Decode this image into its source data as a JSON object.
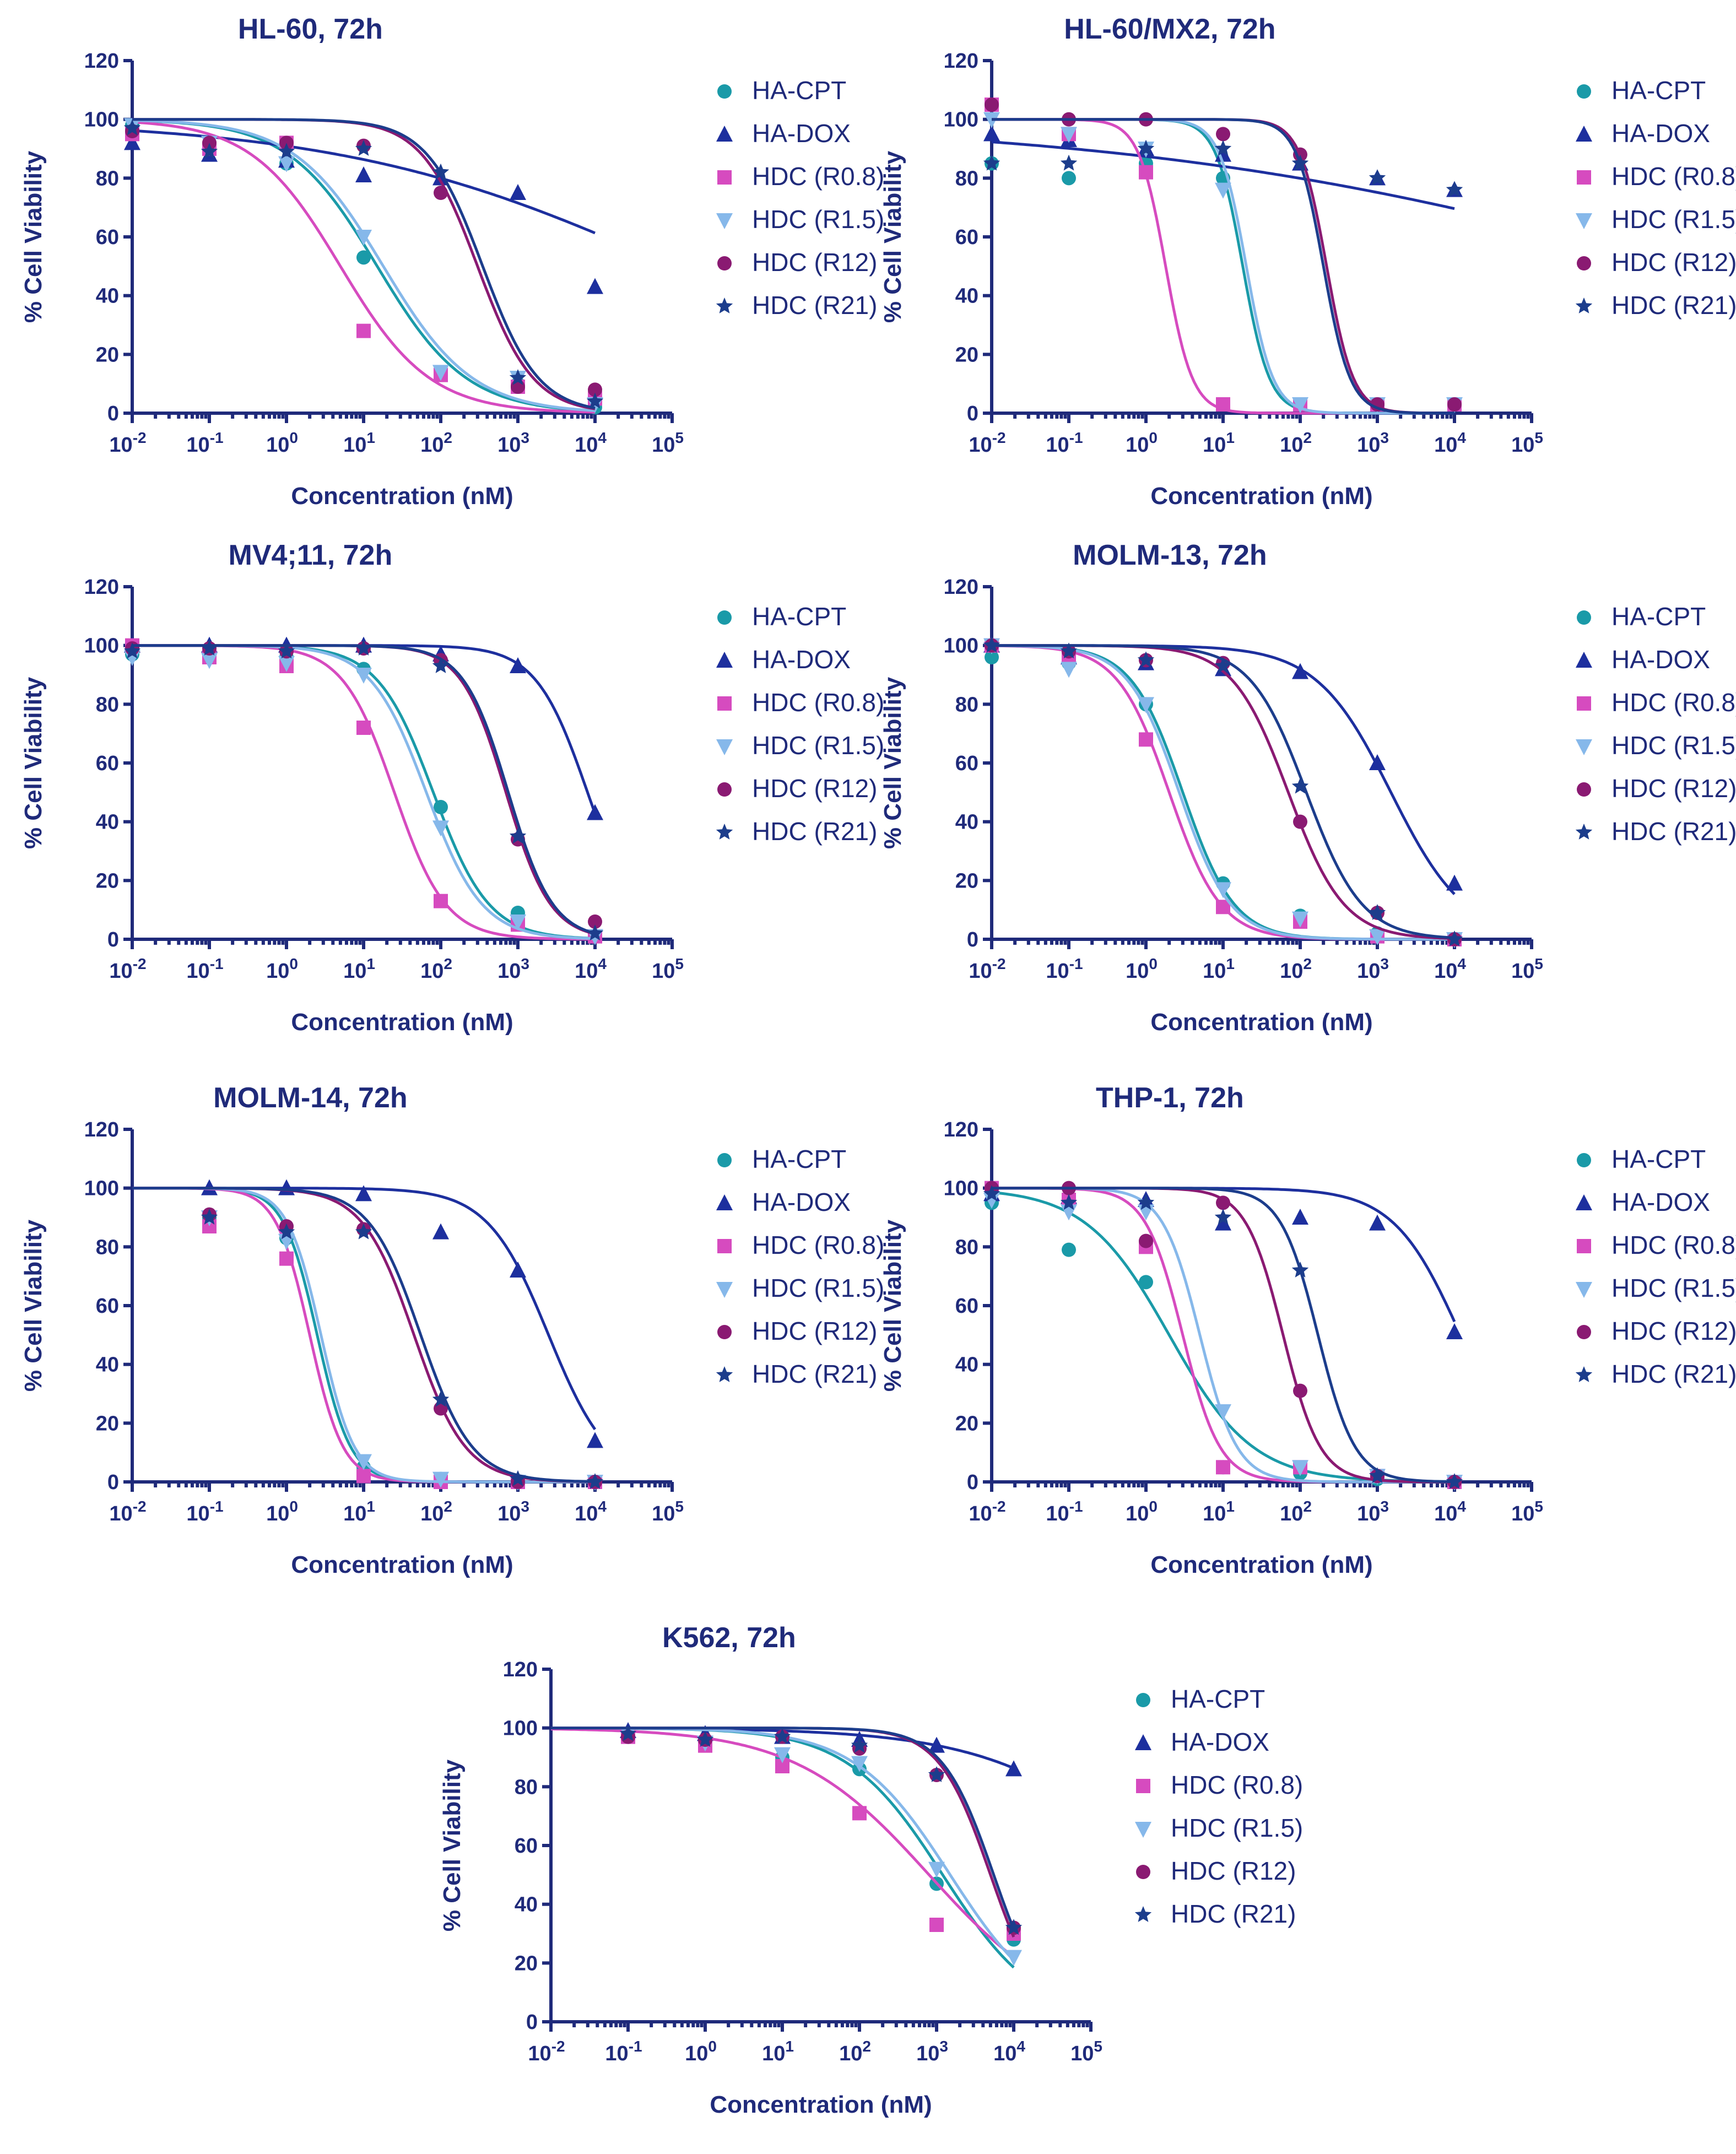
{
  "colors": {
    "HA-CPT": "#1a9aa8",
    "HA-DOX": "#1d2f9e",
    "HDC (R0.8)": "#d64bbf",
    "HDC (R1.5)": "#86b8ea",
    "HDC (R12)": "#8a1a72",
    "HDC (R21)": "#1c3d8c",
    "axis": "#1f2a7a"
  },
  "legend": [
    {
      "name": "HA-CPT",
      "marker": "circle"
    },
    {
      "name": "HA-DOX",
      "marker": "triangle"
    },
    {
      "name": "HDC (R0.8)",
      "marker": "square"
    },
    {
      "name": "HDC (R1.5)",
      "marker": "triangle-down"
    },
    {
      "name": "HDC (R12)",
      "marker": "circle"
    },
    {
      "name": "HDC (R21)",
      "marker": "star"
    }
  ],
  "chart_data": [
    {
      "type": "line",
      "title": "HL-60, 72h",
      "xlabel": "Concentration (nM)",
      "ylabel": "% Cell Viability",
      "xscale": "log",
      "xlim": [
        0.01,
        100000
      ],
      "ylim": [
        0,
        120
      ],
      "yticks": [
        0,
        20,
        40,
        60,
        80,
        100,
        120
      ],
      "xticks": [
        "10^-2",
        "10^-1",
        "10^0",
        "10^1",
        "10^2",
        "10^3",
        "10^4",
        "10^5"
      ],
      "x": [
        0.01,
        0.1,
        1,
        10,
        100,
        1000,
        10000
      ],
      "series": [
        {
          "name": "HA-CPT",
          "values": [
            98,
            92,
            85,
            53,
            13,
            10,
            2
          ],
          "curve": {
            "top": 100,
            "ic50": 15,
            "hill": 0.75,
            "bottom": 0
          }
        },
        {
          "name": "HA-DOX",
          "values": [
            92,
            88,
            86,
            81,
            80,
            75,
            43
          ],
          "curve": {
            "top": 100,
            "ic50": 100000,
            "hill": 0.2,
            "bottom": 0
          }
        },
        {
          "name": "HDC (R0.8)",
          "values": [
            95,
            90,
            92,
            28,
            13,
            9,
            5
          ],
          "curve": {
            "top": 100,
            "ic50": 5,
            "hill": 0.75,
            "bottom": 0
          }
        },
        {
          "name": "HDC (R1.5)",
          "values": [
            98,
            92,
            85,
            60,
            14,
            12,
            3
          ],
          "curve": {
            "top": 100,
            "ic50": 18,
            "hill": 0.75,
            "bottom": 0
          }
        },
        {
          "name": "HDC (R12)",
          "values": [
            96,
            92,
            92,
            91,
            75,
            9,
            8
          ],
          "curve": {
            "top": 100,
            "ic50": 300,
            "hill": 1.2,
            "bottom": 0
          }
        },
        {
          "name": "HDC (R21)",
          "values": [
            97,
            89,
            89,
            90,
            82,
            12,
            4
          ],
          "curve": {
            "top": 100,
            "ic50": 350,
            "hill": 1.2,
            "bottom": 0
          }
        }
      ]
    },
    {
      "type": "line",
      "title": "HL-60/MX2, 72h",
      "xlabel": "Concentration (nM)",
      "ylabel": "% Cell Viability",
      "xscale": "log",
      "xlim": [
        0.01,
        100000
      ],
      "ylim": [
        0,
        120
      ],
      "yticks": [
        0,
        20,
        40,
        60,
        80,
        100,
        120
      ],
      "xticks": [
        "10^-2",
        "10^-1",
        "10^0",
        "10^1",
        "10^2",
        "10^3",
        "10^4",
        "10^5"
      ],
      "x": [
        0.01,
        0.1,
        1,
        10,
        100,
        1000,
        10000
      ],
      "series": [
        {
          "name": "HA-CPT",
          "values": [
            85,
            80,
            85,
            80,
            3,
            3,
            3
          ],
          "curve": {
            "top": 100,
            "ic50": 18,
            "hill": 2.5,
            "bottom": 0
          }
        },
        {
          "name": "HA-DOX",
          "values": [
            95,
            93,
            90,
            88,
            85,
            80,
            76
          ],
          "curve": {
            "top": 100,
            "ic50": 10000000,
            "hill": 0.12,
            "bottom": 0
          }
        },
        {
          "name": "HDC (R0.8)",
          "values": [
            105,
            95,
            82,
            3,
            3,
            3,
            3
          ],
          "curve": {
            "top": 100,
            "ic50": 1.8,
            "hill": 2.5,
            "bottom": 0
          }
        },
        {
          "name": "HDC (R1.5)",
          "values": [
            100,
            95,
            90,
            76,
            3,
            3,
            3
          ],
          "curve": {
            "top": 100,
            "ic50": 20,
            "hill": 2.5,
            "bottom": 0
          }
        },
        {
          "name": "HDC (R12)",
          "values": [
            105,
            100,
            100,
            95,
            88,
            3,
            3
          ],
          "curve": {
            "top": 100,
            "ic50": 220,
            "hill": 2.5,
            "bottom": 0
          }
        },
        {
          "name": "HDC (R21)",
          "values": [
            85,
            85,
            90,
            90,
            85,
            80,
            76
          ],
          "curve": {
            "top": 100,
            "ic50": 200,
            "hill": 2.5,
            "bottom": 0
          }
        }
      ]
    },
    {
      "type": "line",
      "title": "MV4;11, 72h",
      "xlabel": "Concentration (nM)",
      "ylabel": "% Cell Viability",
      "xscale": "log",
      "xlim": [
        0.01,
        100000
      ],
      "ylim": [
        0,
        120
      ],
      "yticks": [
        0,
        20,
        40,
        60,
        80,
        100,
        120
      ],
      "xticks": [
        "10^-2",
        "10^-1",
        "10^0",
        "10^1",
        "10^2",
        "10^3",
        "10^4",
        "10^5"
      ],
      "x": [
        0.01,
        0.1,
        1,
        10,
        100,
        1000,
        10000
      ],
      "series": [
        {
          "name": "HA-CPT",
          "values": [
            97,
            96,
            96,
            92,
            45,
            9,
            1
          ],
          "curve": {
            "top": 100,
            "ic50": 80,
            "hill": 1.2,
            "bottom": 0
          }
        },
        {
          "name": "HA-DOX",
          "values": [
            100,
            100,
            100,
            100,
            97,
            93,
            43
          ],
          "curve": {
            "top": 100,
            "ic50": 8000,
            "hill": 1.3,
            "bottom": 0
          }
        },
        {
          "name": "HDC (R0.8)",
          "values": [
            100,
            96,
            93,
            72,
            13,
            5,
            1
          ],
          "curve": {
            "top": 100,
            "ic50": 25,
            "hill": 1.3,
            "bottom": 0
          }
        },
        {
          "name": "HDC (R1.5)",
          "values": [
            96,
            95,
            94,
            90,
            38,
            6,
            1
          ],
          "curve": {
            "top": 100,
            "ic50": 65,
            "hill": 1.2,
            "bottom": 0
          }
        },
        {
          "name": "HDC (R12)",
          "values": [
            99,
            99,
            98,
            99,
            95,
            34,
            6
          ],
          "curve": {
            "top": 100,
            "ic50": 700,
            "hill": 1.5,
            "bottom": 0
          }
        },
        {
          "name": "HDC (R21)",
          "values": [
            98,
            99,
            98,
            99,
            93,
            35,
            2
          ],
          "curve": {
            "top": 100,
            "ic50": 750,
            "hill": 1.5,
            "bottom": 0
          }
        }
      ]
    },
    {
      "type": "line",
      "title": "MOLM-13, 72h",
      "xlabel": "Concentration (nM)",
      "ylabel": "% Cell Viability",
      "xscale": "log",
      "xlim": [
        0.01,
        100000
      ],
      "ylim": [
        0,
        120
      ],
      "yticks": [
        0,
        20,
        40,
        60,
        80,
        100,
        120
      ],
      "xticks": [
        "10^-2",
        "10^-1",
        "10^0",
        "10^1",
        "10^2",
        "10^3",
        "10^4",
        "10^5"
      ],
      "x": [
        0.01,
        0.1,
        1,
        10,
        100,
        1000,
        10000
      ],
      "series": [
        {
          "name": "HA-CPT",
          "values": [
            96,
            94,
            80,
            19,
            8,
            2,
            0
          ],
          "curve": {
            "top": 100,
            "ic50": 3,
            "hill": 1.3,
            "bottom": 0
          }
        },
        {
          "name": "HA-DOX",
          "values": [
            100,
            96,
            94,
            92,
            91,
            60,
            19
          ],
          "curve": {
            "top": 100,
            "ic50": 1500,
            "hill": 0.9,
            "bottom": 0
          }
        },
        {
          "name": "HDC (R0.8)",
          "values": [
            100,
            96,
            68,
            11,
            6,
            1,
            0
          ],
          "curve": {
            "top": 100,
            "ic50": 2,
            "hill": 1.3,
            "bottom": 0
          }
        },
        {
          "name": "HDC (R1.5)",
          "values": [
            100,
            92,
            80,
            17,
            7,
            1,
            0
          ],
          "curve": {
            "top": 100,
            "ic50": 2.7,
            "hill": 1.3,
            "bottom": 0
          }
        },
        {
          "name": "HDC (R12)",
          "values": [
            100,
            98,
            95,
            94,
            40,
            9,
            0
          ],
          "curve": {
            "top": 100,
            "ic50": 70,
            "hill": 1.2,
            "bottom": 0
          }
        },
        {
          "name": "HDC (R21)",
          "values": [
            100,
            98,
            95,
            93,
            52,
            9,
            0
          ],
          "curve": {
            "top": 100,
            "ic50": 120,
            "hill": 1.2,
            "bottom": 0
          }
        }
      ]
    },
    {
      "type": "line",
      "title": "MOLM-14, 72h",
      "xlabel": "Concentration (nM)",
      "ylabel": "% Cell Viability",
      "xscale": "log",
      "xlim": [
        0.01,
        100000
      ],
      "ylim": [
        0,
        120
      ],
      "yticks": [
        0,
        20,
        40,
        60,
        80,
        100,
        120
      ],
      "xticks": [
        "10^-2",
        "10^-1",
        "10^0",
        "10^1",
        "10^2",
        "10^3",
        "10^4",
        "10^5"
      ],
      "x": [
        0.1,
        1,
        10,
        100,
        1000,
        10000
      ],
      "series": [
        {
          "name": "HA-CPT",
          "values": [
            90,
            83,
            5,
            1,
            0,
            0
          ],
          "curve": {
            "top": 100,
            "ic50": 2.5,
            "hill": 2.0,
            "bottom": 0
          }
        },
        {
          "name": "HA-DOX",
          "values": [
            100,
            100,
            98,
            85,
            72,
            14
          ],
          "curve": {
            "top": 100,
            "ic50": 2500,
            "hill": 1.1,
            "bottom": 0
          }
        },
        {
          "name": "HDC (R0.8)",
          "values": [
            87,
            76,
            2,
            0,
            0,
            0
          ],
          "curve": {
            "top": 100,
            "ic50": 2,
            "hill": 2.0,
            "bottom": 0
          }
        },
        {
          "name": "HDC (R1.5)",
          "values": [
            90,
            82,
            7,
            1,
            0,
            0
          ],
          "curve": {
            "top": 100,
            "ic50": 2.8,
            "hill": 2.0,
            "bottom": 0
          }
        },
        {
          "name": "HDC (R12)",
          "values": [
            91,
            87,
            86,
            25,
            0,
            0
          ],
          "curve": {
            "top": 100,
            "ic50": 45,
            "hill": 1.3,
            "bottom": 0
          }
        },
        {
          "name": "HDC (R21)",
          "values": [
            90,
            85,
            85,
            28,
            1,
            0
          ],
          "curve": {
            "top": 100,
            "ic50": 55,
            "hill": 1.3,
            "bottom": 0
          }
        }
      ]
    },
    {
      "type": "line",
      "title": "THP-1, 72h",
      "xlabel": "Concentration (nM)",
      "ylabel": "% Cell Viability",
      "xscale": "log",
      "xlim": [
        0.01,
        100000
      ],
      "ylim": [
        0,
        120
      ],
      "yticks": [
        0,
        20,
        40,
        60,
        80,
        100,
        120
      ],
      "xticks": [
        "10^-2",
        "10^-1",
        "10^0",
        "10^1",
        "10^2",
        "10^3",
        "10^4",
        "10^5"
      ],
      "x": [
        0.01,
        0.1,
        1,
        10,
        100,
        1000,
        10000
      ],
      "series": [
        {
          "name": "HA-CPT",
          "values": [
            95,
            79,
            68,
            5,
            3,
            1,
            0
          ],
          "curve": {
            "top": 100,
            "ic50": 2,
            "hill": 0.8,
            "bottom": 0
          }
        },
        {
          "name": "HA-DOX",
          "values": [
            98,
            97,
            96,
            88,
            90,
            88,
            51
          ],
          "curve": {
            "top": 100,
            "ic50": 12000,
            "hill": 1.0,
            "bottom": 0
          }
        },
        {
          "name": "HDC (R0.8)",
          "values": [
            100,
            96,
            80,
            5,
            5,
            2,
            0
          ],
          "curve": {
            "top": 100,
            "ic50": 3,
            "hill": 1.8,
            "bottom": 0
          }
        },
        {
          "name": "HDC (R1.5)",
          "values": [
            96,
            92,
            92,
            24,
            5,
            2,
            0
          ],
          "curve": {
            "top": 100,
            "ic50": 5,
            "hill": 1.8,
            "bottom": 0
          }
        },
        {
          "name": "HDC (R12)",
          "values": [
            100,
            100,
            82,
            95,
            31,
            2,
            0
          ],
          "curve": {
            "top": 100,
            "ic50": 60,
            "hill": 1.8,
            "bottom": 0
          }
        },
        {
          "name": "HDC (R21)",
          "values": [
            98,
            95,
            95,
            90,
            72,
            2,
            0
          ],
          "curve": {
            "top": 100,
            "ic50": 170,
            "hill": 1.8,
            "bottom": 0
          }
        }
      ]
    },
    {
      "type": "line",
      "title": "K562, 72h",
      "xlabel": "Concentration (nM)",
      "ylabel": "% Cell Viability",
      "xscale": "log",
      "xlim": [
        0.01,
        100000
      ],
      "ylim": [
        0,
        120
      ],
      "yticks": [
        0,
        20,
        40,
        60,
        80,
        100,
        120
      ],
      "xticks": [
        "10^-2",
        "10^-1",
        "10^0",
        "10^1",
        "10^2",
        "10^3",
        "10^4",
        "10^5"
      ],
      "x": [
        0.1,
        1,
        10,
        100,
        1000,
        10000
      ],
      "series": [
        {
          "name": "HA-CPT",
          "values": [
            97,
            95,
            90,
            86,
            47,
            28
          ],
          "curve": {
            "top": 100,
            "ic50": 1200,
            "hill": 0.7,
            "bottom": 0
          }
        },
        {
          "name": "HA-DOX",
          "values": [
            99,
            98,
            97,
            96,
            94,
            86
          ],
          "curve": {
            "top": 100,
            "ic50": 1000000,
            "hill": 0.4,
            "bottom": 0
          }
        },
        {
          "name": "HDC (R0.8)",
          "values": [
            97,
            94,
            87,
            71,
            33,
            30
          ],
          "curve": {
            "top": 100,
            "ic50": 800,
            "hill": 0.5,
            "bottom": 0
          }
        },
        {
          "name": "HDC (R1.5)",
          "values": [
            98,
            95,
            91,
            88,
            52,
            22
          ],
          "curve": {
            "top": 100,
            "ic50": 1500,
            "hill": 0.7,
            "bottom": 0
          }
        },
        {
          "name": "HDC (R12)",
          "values": [
            97,
            96,
            97,
            93,
            84,
            32
          ],
          "curve": {
            "top": 100,
            "ic50": 5000,
            "hill": 1.3,
            "bottom": 0
          }
        },
        {
          "name": "HDC (R21)",
          "values": [
            98,
            96,
            97,
            94,
            84,
            32
          ],
          "curve": {
            "top": 100,
            "ic50": 5500,
            "hill": 1.3,
            "bottom": 0
          }
        }
      ]
    }
  ]
}
